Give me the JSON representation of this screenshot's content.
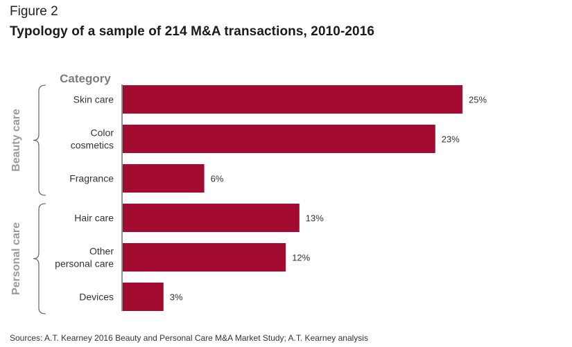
{
  "figure_label": "Figure 2",
  "title": "Typology of a sample of 214 M&A transactions, 2010-2016",
  "source": "Sources: A.T. Kearney 2016 Beauty and Personal Care M&A Market Study; A.T. Kearney analysis",
  "chart_data": {
    "type": "bar",
    "orientation": "horizontal",
    "axis_title": "Category",
    "categories": [
      [
        "Skin care"
      ],
      [
        "Color",
        "cosmetics"
      ],
      [
        "Fragrance"
      ],
      [
        "Hair care"
      ],
      [
        "Other",
        "personal care"
      ],
      [
        "Devices"
      ]
    ],
    "values": [
      25,
      23,
      6,
      13,
      12,
      3
    ],
    "value_labels": [
      "25%",
      "23%",
      "6%",
      "13%",
      "12%",
      "3%"
    ],
    "unit": "%",
    "xlim": [
      0,
      25
    ],
    "groups": [
      {
        "name": "Beauty care",
        "members": [
          0,
          1,
          2
        ]
      },
      {
        "name": "Personal care",
        "members": [
          3,
          4,
          5
        ]
      }
    ],
    "bar_color": "#a30b30",
    "grid": false
  }
}
